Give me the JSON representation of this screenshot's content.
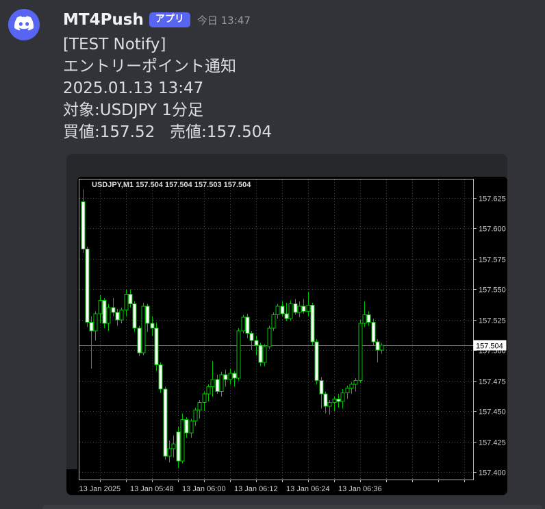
{
  "colors": {
    "app_background": "#313338",
    "accent_blurple": "#5865f2",
    "message_text": "#dbdee1",
    "username_text": "#f2f3f5",
    "timestamp_text": "#949ba4",
    "chart_background": "#000000",
    "chart_frame_gray": "#27282c",
    "grid": "#4a4a4a",
    "plot_border": "#b8b8b8",
    "candle_outline": "#00c300",
    "bear_body_fill": "#ffffff",
    "bull_body_fill": "#000000",
    "axis_text": "#d2d2d2",
    "current_price_line": "#7a7a7a",
    "current_price_badge_bg": "#ffffff",
    "current_price_badge_text": "#000000"
  },
  "message": {
    "author": "MT4Push",
    "badge": "アプリ",
    "timestamp": "今日 13:47",
    "lines": [
      "[TEST Notify]",
      "エントリーポイント通知",
      "2025.01.13 13:47",
      "対象:USDJPY 1分足",
      "買値:157.52   売値:157.504"
    ]
  },
  "chart_data": {
    "type": "candlestick",
    "title": "USDJPY,M1  157.504 157.504 157.503 157.504",
    "symbol": "USDJPY",
    "timeframe": "M1",
    "current_price": "157.504",
    "ylim": [
      157.394,
      157.64
    ],
    "y_ticks": [
      "157.625",
      "157.600",
      "157.575",
      "157.550",
      "157.525",
      "157.500",
      "157.475",
      "157.450",
      "157.425",
      "157.400"
    ],
    "x_tick_labels": [
      "13 Jan 2025",
      "13 Jan 05:48",
      "13 Jan 06:00",
      "13 Jan 06:12",
      "13 Jan 06:24",
      "13 Jan 06:36"
    ],
    "grid": true,
    "legend_position": "none",
    "candles": [
      [
        "05:32",
        157.622,
        157.632,
        157.58,
        157.583
      ],
      [
        "05:33",
        157.583,
        157.585,
        157.519,
        157.523
      ],
      [
        "05:34",
        157.523,
        157.528,
        157.485,
        157.516
      ],
      [
        "05:35",
        157.516,
        157.532,
        157.508,
        157.53
      ],
      [
        "05:36",
        157.53,
        157.545,
        157.522,
        157.541
      ],
      [
        "05:37",
        157.541,
        157.543,
        157.518,
        157.522
      ],
      [
        "05:38",
        157.522,
        157.538,
        157.516,
        157.535
      ],
      [
        "05:39",
        157.535,
        157.543,
        157.528,
        157.531
      ],
      [
        "05:40",
        157.531,
        157.534,
        157.52,
        157.525
      ],
      [
        "05:41",
        157.525,
        157.535,
        157.522,
        157.533
      ],
      [
        "05:42",
        157.533,
        157.55,
        157.528,
        157.546
      ],
      [
        "05:43",
        157.546,
        157.55,
        157.535,
        157.538
      ],
      [
        "05:44",
        157.538,
        157.54,
        157.515,
        157.518
      ],
      [
        "05:45",
        157.518,
        157.52,
        157.495,
        157.498
      ],
      [
        "05:46",
        157.498,
        157.539,
        157.496,
        157.536
      ],
      [
        "05:47",
        157.536,
        157.538,
        157.515,
        157.522
      ],
      [
        "05:48",
        157.522,
        157.528,
        157.512,
        157.518
      ],
      [
        "05:49",
        157.518,
        157.523,
        157.483,
        157.488
      ],
      [
        "05:50",
        157.488,
        157.49,
        157.465,
        157.468
      ],
      [
        "05:51",
        157.468,
        157.47,
        157.41,
        157.413
      ],
      [
        "05:52",
        157.413,
        157.426,
        157.408,
        157.419
      ],
      [
        "05:53",
        157.419,
        157.43,
        157.412,
        157.423
      ],
      [
        "05:54",
        157.433,
        157.437,
        157.403,
        157.409
      ],
      [
        "05:55",
        157.409,
        157.448,
        157.407,
        157.443
      ],
      [
        "05:56",
        157.443,
        157.445,
        157.428,
        157.432
      ],
      [
        "05:57",
        157.432,
        157.444,
        157.428,
        157.442
      ],
      [
        "05:58",
        157.442,
        157.453,
        157.438,
        157.451
      ],
      [
        "05:59",
        157.451,
        157.459,
        157.444,
        157.457
      ],
      [
        "06:00",
        157.457,
        157.466,
        157.45,
        157.464
      ],
      [
        "06:01",
        157.464,
        157.472,
        157.458,
        157.47
      ],
      [
        "06:02",
        157.47,
        157.491,
        157.462,
        157.476
      ],
      [
        "06:03",
        157.476,
        157.48,
        157.464,
        157.466
      ],
      [
        "06:04",
        157.466,
        157.482,
        157.462,
        157.48
      ],
      [
        "06:05",
        157.48,
        157.484,
        157.47,
        157.476
      ],
      [
        "06:06",
        157.476,
        157.485,
        157.472,
        157.481
      ],
      [
        "06:07",
        157.481,
        157.483,
        157.47,
        157.477
      ],
      [
        "06:08",
        157.477,
        157.518,
        157.475,
        157.516
      ],
      [
        "06:09",
        157.516,
        157.529,
        157.514,
        157.527
      ],
      [
        "06:10",
        157.527,
        157.53,
        157.51,
        157.514
      ],
      [
        "06:11",
        157.514,
        157.516,
        157.5,
        157.508
      ],
      [
        "06:12",
        157.508,
        157.512,
        157.496,
        157.504
      ],
      [
        "06:13",
        157.504,
        157.506,
        157.487,
        157.49
      ],
      [
        "06:14",
        157.49,
        157.505,
        157.487,
        157.503
      ],
      [
        "06:15",
        157.503,
        157.52,
        157.501,
        157.518
      ],
      [
        "06:16",
        157.518,
        157.531,
        157.516,
        157.529
      ],
      [
        "06:17",
        157.529,
        157.538,
        157.526,
        157.536
      ],
      [
        "06:18",
        157.536,
        157.54,
        157.528,
        157.53
      ],
      [
        "06:19",
        157.53,
        157.539,
        157.524,
        157.526
      ],
      [
        "06:20",
        157.526,
        157.541,
        157.524,
        157.538
      ],
      [
        "06:21",
        157.538,
        157.542,
        157.529,
        157.531
      ],
      [
        "06:22",
        157.531,
        157.54,
        157.527,
        157.536
      ],
      [
        "06:23",
        157.536,
        157.542,
        157.53,
        157.532
      ],
      [
        "06:24",
        157.532,
        157.548,
        157.528,
        157.537
      ],
      [
        "06:25",
        157.537,
        157.539,
        157.504,
        157.507
      ],
      [
        "06:26",
        157.507,
        157.509,
        157.472,
        157.475
      ],
      [
        "06:27",
        157.475,
        157.478,
        157.452,
        157.464
      ],
      [
        "06:28",
        157.464,
        157.466,
        157.448,
        157.454
      ],
      [
        "06:29",
        157.454,
        157.459,
        157.447,
        157.457
      ],
      [
        "06:30",
        157.457,
        157.462,
        157.45,
        157.46
      ],
      [
        "06:31",
        157.46,
        157.464,
        157.453,
        157.458
      ],
      [
        "06:32",
        157.458,
        157.468,
        157.452,
        157.465
      ],
      [
        "06:33",
        157.465,
        157.471,
        157.46,
        157.469
      ],
      [
        "06:34",
        157.469,
        157.474,
        157.464,
        157.472
      ],
      [
        "06:35",
        157.472,
        157.477,
        157.466,
        157.475
      ],
      [
        "06:36",
        157.475,
        157.525,
        157.473,
        157.522
      ],
      [
        "06:37",
        157.522,
        157.54,
        157.519,
        157.529
      ],
      [
        "06:38",
        157.529,
        157.532,
        157.52,
        157.523
      ],
      [
        "06:39",
        157.523,
        157.526,
        157.504,
        157.507
      ],
      [
        "06:40",
        157.507,
        157.509,
        157.49,
        157.5
      ],
      [
        "06:41",
        157.5,
        157.506,
        157.497,
        157.504
      ]
    ]
  }
}
